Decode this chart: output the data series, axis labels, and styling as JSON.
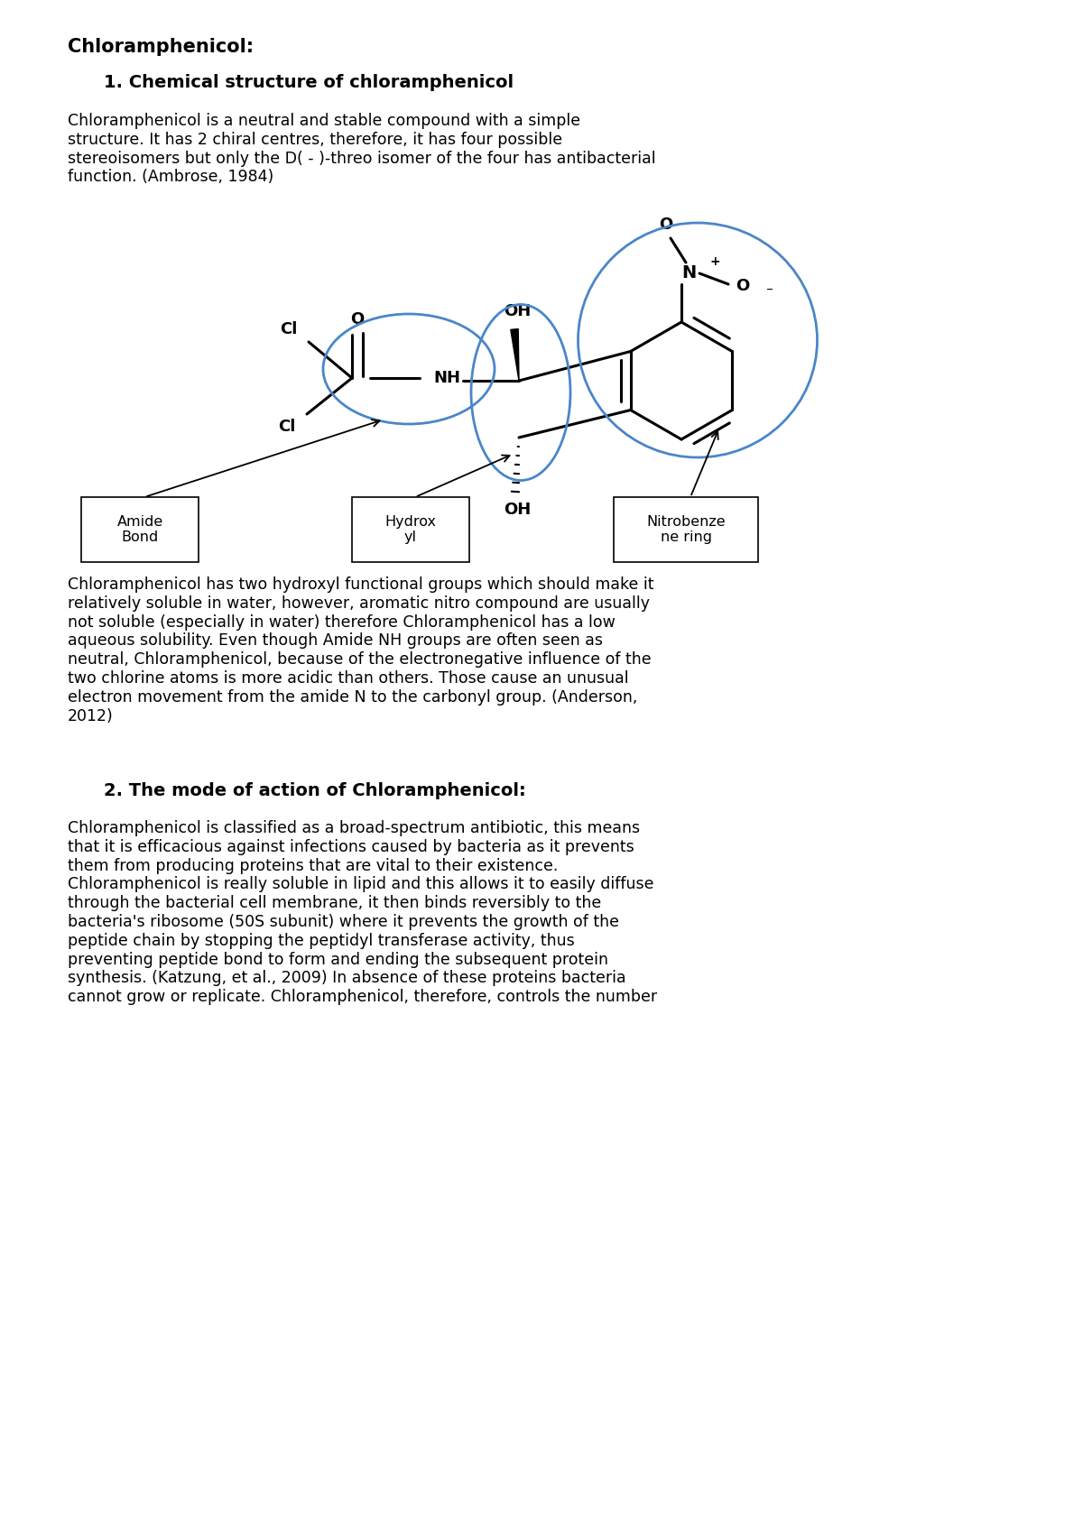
{
  "title": "Chloramphenicol:",
  "section1_title": "1. Chemical structure of chloramphenicol",
  "section1_text": "Chloramphenicol is a neutral and stable compound with a simple\nstructure. It has 2 chiral centres, therefore, it has four possible\nstereoisomers but only the D( - )-threo isomer of the four has antibacterial\nfunction. (Ambrose, 1984)",
  "section2_text": "Chloramphenicol has two hydroxyl functional groups which should make it\nrelatively soluble in water, however, aromatic nitro compound are usually\nnot soluble (especially in water) therefore Chloramphenicol has a low\naqueous solubility. Even though Amide NH groups are often seen as\nneutral, Chloramphenicol, because of the electronegative influence of the\ntwo chlorine atoms is more acidic than others. Those cause an unusual\nelectron movement from the amide N to the carbonyl group. (Anderson,\n2012)",
  "section3_title": "2. The mode of action of Chloramphenicol:",
  "section3_text": "Chloramphenicol is classified as a broad-spectrum antibiotic, this means\nthat it is efficacious against infections caused by bacteria as it prevents\nthem from producing proteins that are vital to their existence.\nChloramphenicol is really soluble in lipid and this allows it to easily diffuse\nthrough the bacterial cell membrane, it then binds reversibly to the\nbacteria's ribosome (50S subunit) where it prevents the growth of the\npeptide chain by stopping the peptidyl transferase activity, thus\npreventing peptide bond to form and ending the subsequent protein\nsynthesis. (Katzung, et al., 2009) In absence of these proteins bacteria\ncannot grow or replicate. Chloramphenicol, therefore, controls the number",
  "bg_color": "#ffffff",
  "text_color": "#000000",
  "circle_color": "#4a86c8",
  "label_box_color": "#ffffff",
  "label_box_edge": "#000000"
}
